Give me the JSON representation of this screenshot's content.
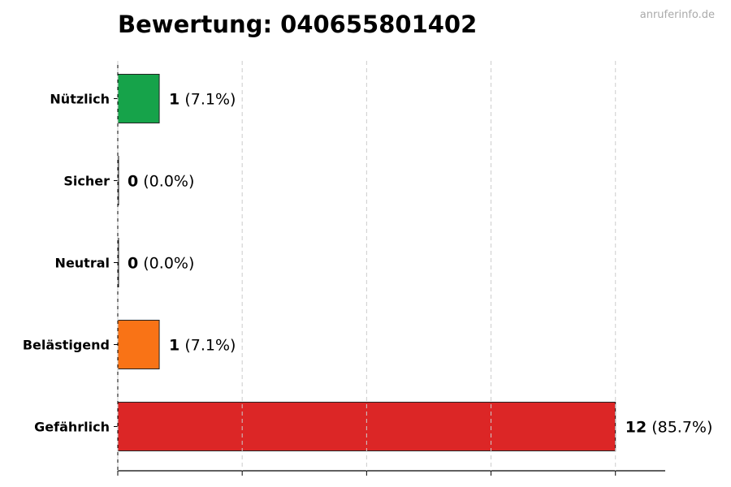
{
  "watermark": "anruferinfo.de",
  "chart_data": {
    "type": "bar",
    "orientation": "horizontal",
    "title": "Bewertung: 040655801402",
    "xlabel": "",
    "ylabel": "",
    "xlim": [
      0,
      13.2
    ],
    "xticks": [
      0,
      3,
      6,
      9,
      12
    ],
    "grid": "x-dashed",
    "categories": [
      "Nützlich",
      "Sicher",
      "Neutral",
      "Belästigend",
      "Gefährlich"
    ],
    "values": [
      1,
      0,
      0,
      1,
      12
    ],
    "value_labels": [
      "1",
      "0",
      "0",
      "1",
      "12"
    ],
    "percent_labels": [
      "(7.1%)",
      "(0.0%)",
      "(0.0%)",
      "(7.1%)",
      "(85.7%)"
    ],
    "colors": [
      "#16a34a",
      "#888888",
      "#888888",
      "#f97316",
      "#dc2626"
    ]
  }
}
